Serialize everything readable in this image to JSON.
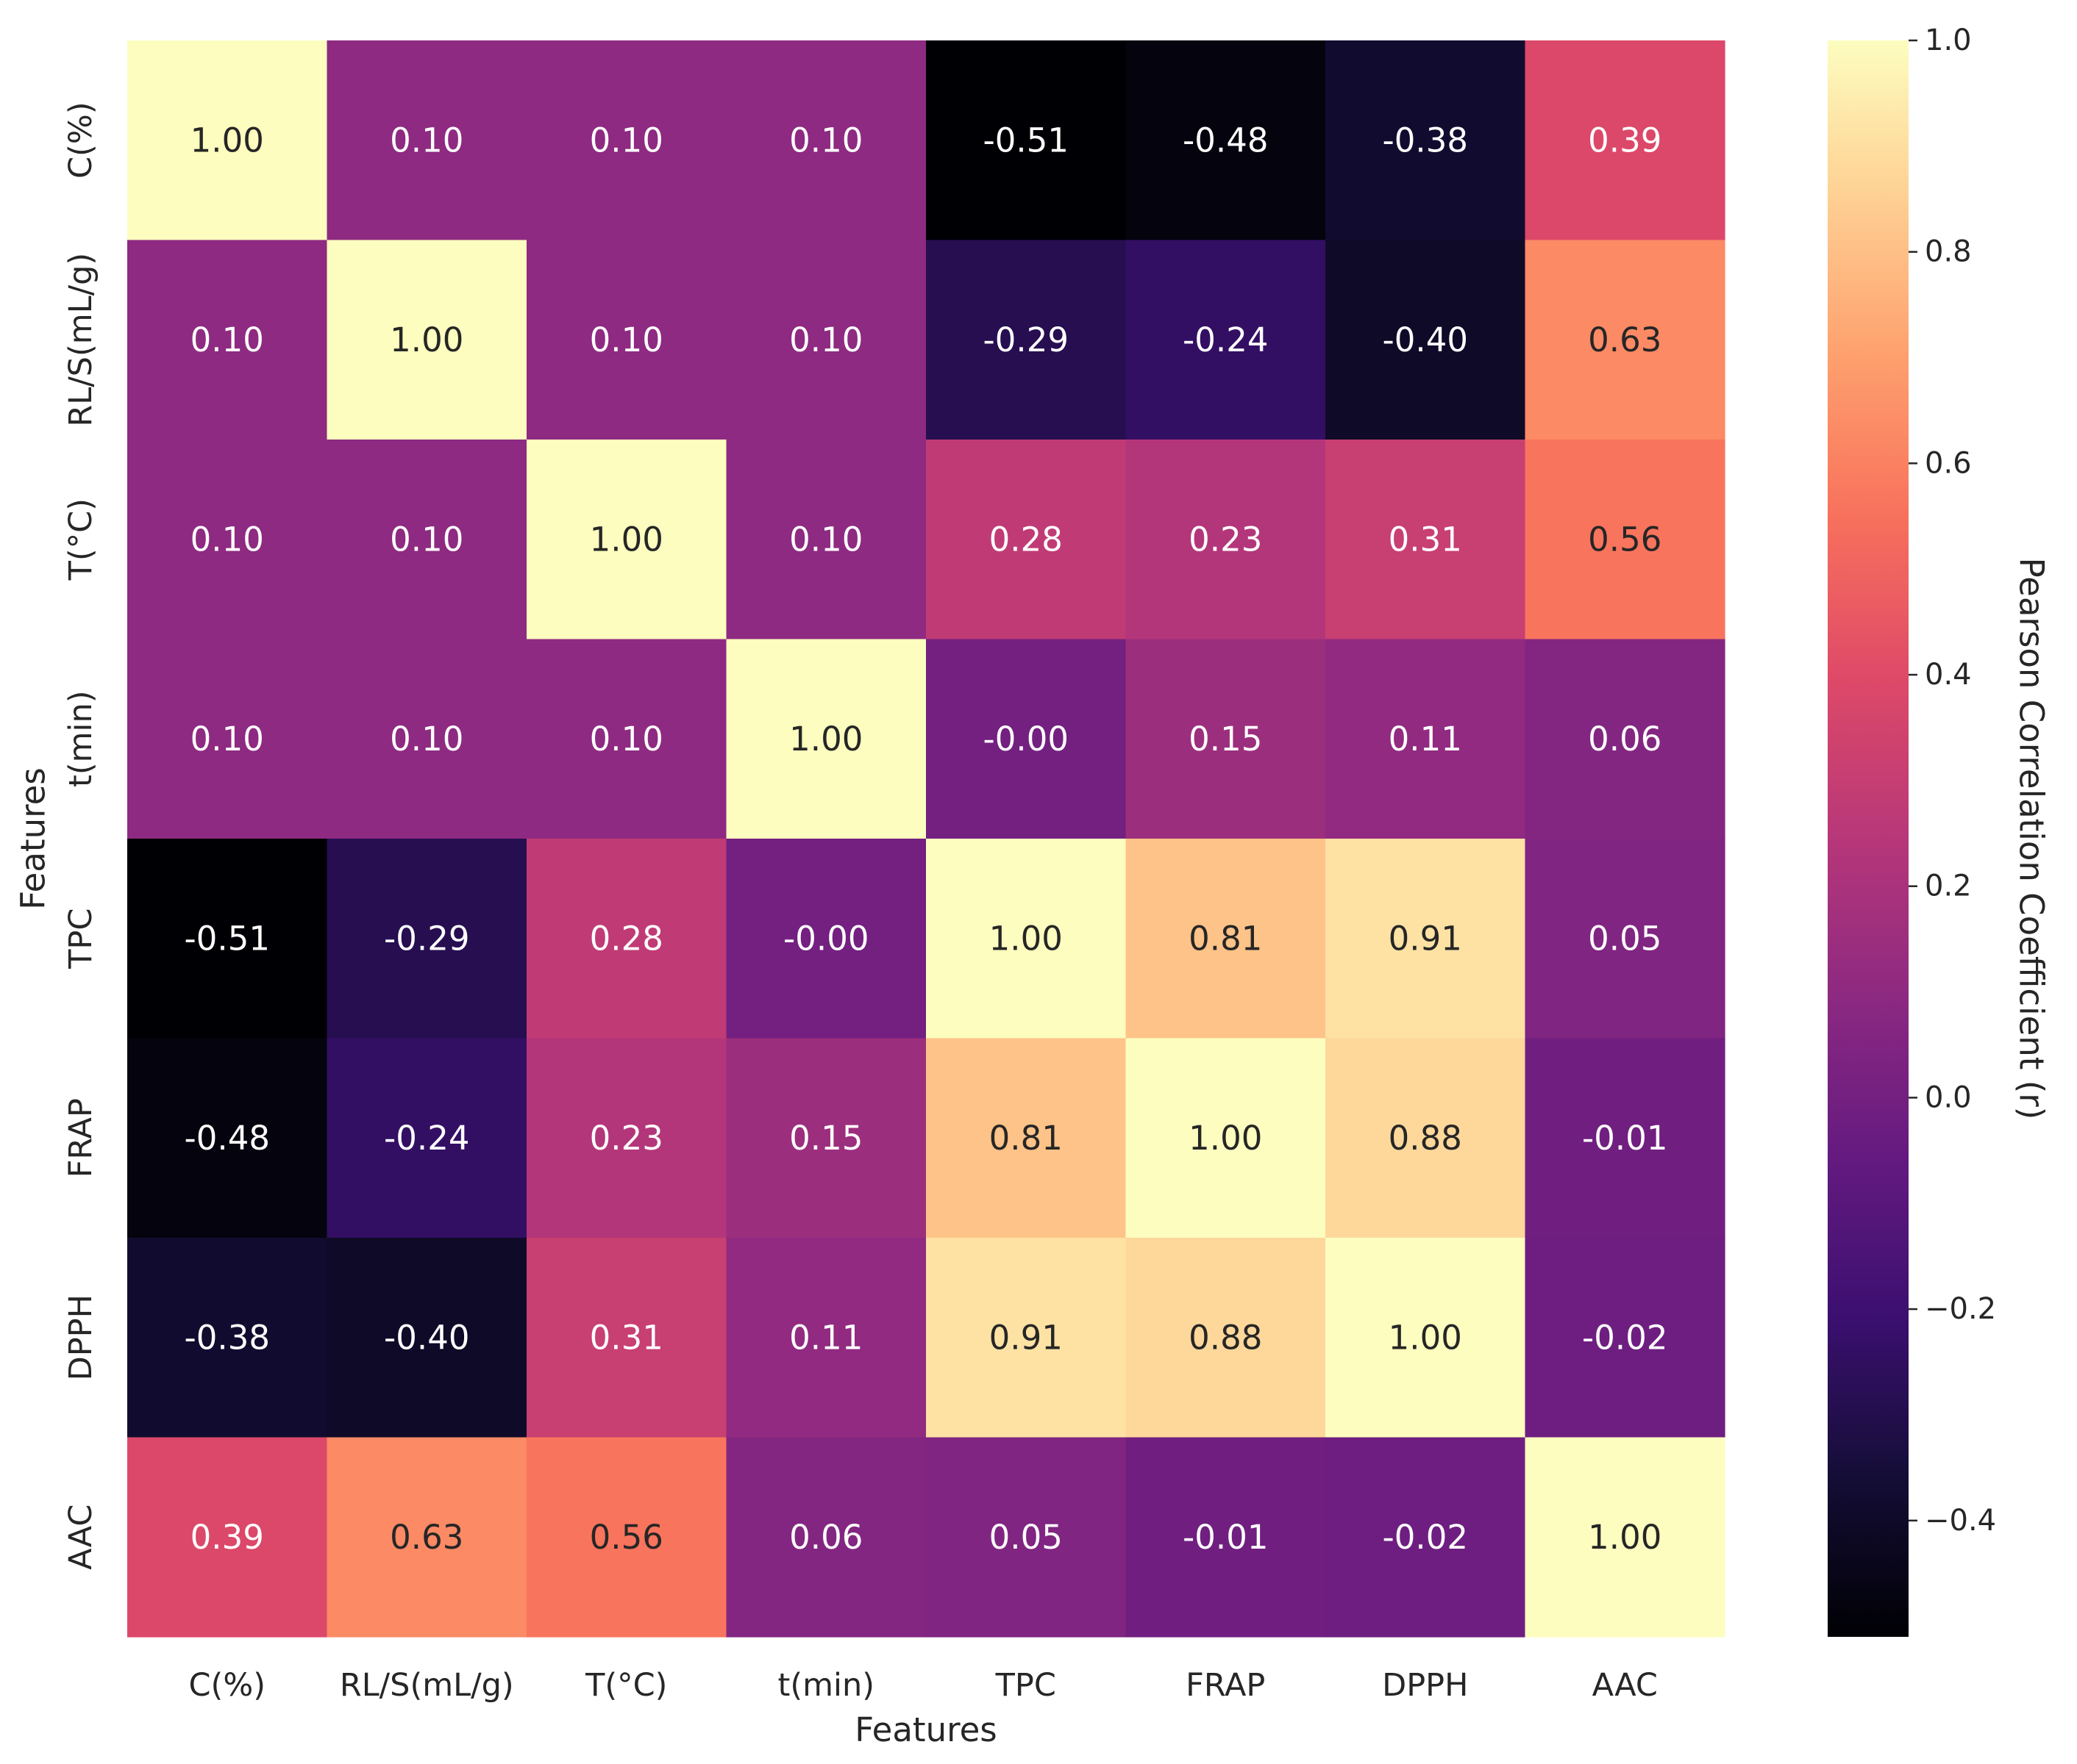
{
  "chart_data": {
    "type": "heatmap",
    "title": "",
    "xlabel": "Features",
    "ylabel": "Features",
    "x_categories": [
      "C(%)",
      "RL/S(mL/g)",
      "T(°C)",
      "t(min)",
      "TPC",
      "FRAP",
      "DPPH",
      "AAC"
    ],
    "y_categories": [
      "C(%)",
      "RL/S(mL/g)",
      "T(°C)",
      "t(min)",
      "TPC",
      "FRAP",
      "DPPH",
      "AAC"
    ],
    "values": [
      [
        1.0,
        0.1,
        0.1,
        0.1,
        -0.51,
        -0.48,
        -0.38,
        0.39
      ],
      [
        0.1,
        1.0,
        0.1,
        0.1,
        -0.29,
        -0.24,
        -0.4,
        0.63
      ],
      [
        0.1,
        0.1,
        1.0,
        0.1,
        0.28,
        0.23,
        0.31,
        0.56
      ],
      [
        0.1,
        0.1,
        0.1,
        1.0,
        -0.0,
        0.15,
        0.11,
        0.06
      ],
      [
        -0.51,
        -0.29,
        0.28,
        -0.0,
        1.0,
        0.81,
        0.91,
        0.05
      ],
      [
        -0.48,
        -0.24,
        0.23,
        0.15,
        0.81,
        1.0,
        0.88,
        -0.01
      ],
      [
        -0.38,
        -0.4,
        0.31,
        0.11,
        0.91,
        0.88,
        1.0,
        -0.02
      ],
      [
        0.39,
        0.63,
        0.56,
        0.06,
        0.05,
        -0.01,
        -0.02,
        1.0
      ]
    ],
    "cell_labels": [
      [
        "1.00",
        "0.10",
        "0.10",
        "0.10",
        "-0.51",
        "-0.48",
        "-0.38",
        "0.39"
      ],
      [
        "0.10",
        "1.00",
        "0.10",
        "0.10",
        "-0.29",
        "-0.24",
        "-0.40",
        "0.63"
      ],
      [
        "0.10",
        "0.10",
        "1.00",
        "0.10",
        "0.28",
        "0.23",
        "0.31",
        "0.56"
      ],
      [
        "0.10",
        "0.10",
        "0.10",
        "1.00",
        "-0.00",
        "0.15",
        "0.11",
        "0.06"
      ],
      [
        "-0.51",
        "-0.29",
        "0.28",
        "-0.00",
        "1.00",
        "0.81",
        "0.91",
        "0.05"
      ],
      [
        "-0.48",
        "-0.24",
        "0.23",
        "0.15",
        "0.81",
        "1.00",
        "0.88",
        "-0.01"
      ],
      [
        "-0.38",
        "-0.40",
        "0.31",
        "0.11",
        "0.91",
        "0.88",
        "1.00",
        "-0.02"
      ],
      [
        "0.39",
        "0.63",
        "0.56",
        "0.06",
        "0.05",
        "-0.01",
        "-0.02",
        "1.00"
      ]
    ],
    "colormap": "magma",
    "colorbar": {
      "label": "Pearson Correlation Coefficient (r)",
      "range": [
        -0.51,
        1.0
      ],
      "ticks": [
        1.0,
        0.8,
        0.6,
        0.4,
        0.2,
        0.0,
        -0.2,
        -0.4
      ],
      "tick_labels": [
        "1.0",
        "0.8",
        "0.6",
        "0.4",
        "0.2",
        "0.0",
        "−0.2",
        "−0.4"
      ]
    }
  }
}
